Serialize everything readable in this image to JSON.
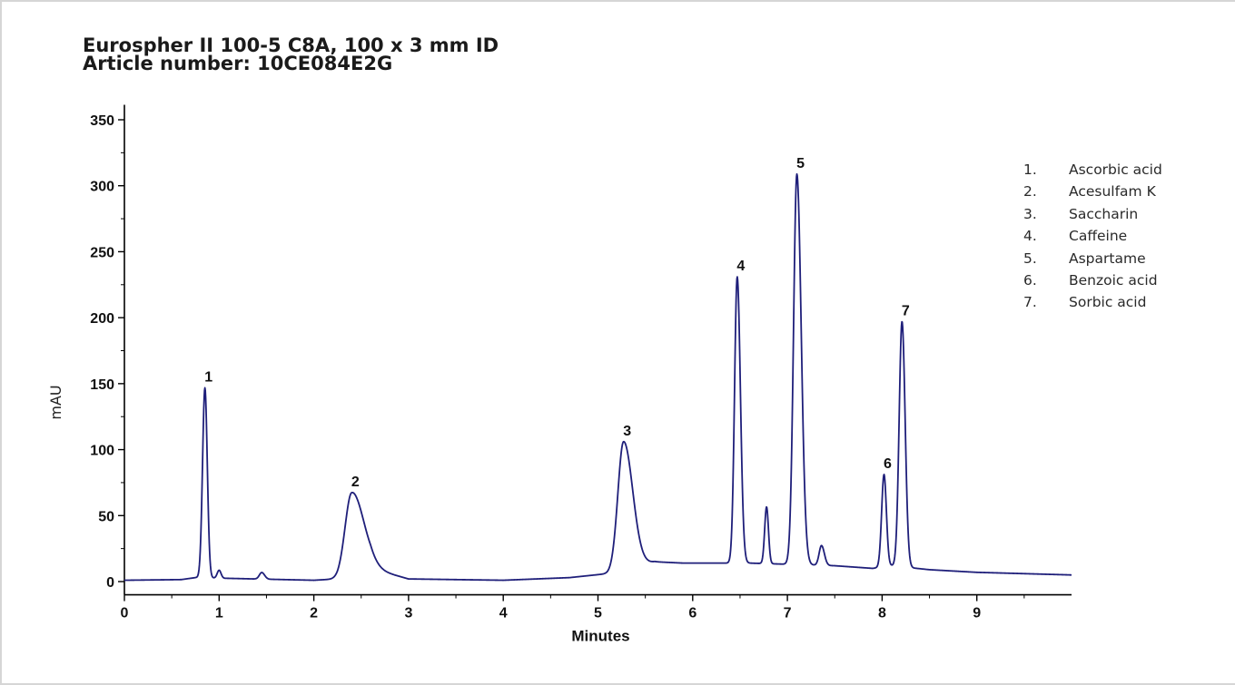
{
  "title": {
    "line1": "Eurospher II 100-5 C8A, 100 x 3 mm ID",
    "line2": "Article number: 10CE084E2G"
  },
  "legend": [
    {
      "num": "1.",
      "name": "Ascorbic acid"
    },
    {
      "num": "2.",
      "name": "Acesulfam K"
    },
    {
      "num": "3.",
      "name": "Saccharin"
    },
    {
      "num": "4.",
      "name": "Caffeine"
    },
    {
      "num": "5.",
      "name": "Aspartame"
    },
    {
      "num": "6.",
      "name": "Benzoic acid"
    },
    {
      "num": "7.",
      "name": "Sorbic acid"
    }
  ],
  "chart_data": {
    "type": "line",
    "xlabel": "Minutes",
    "ylabel": "mAU",
    "xlim": [
      0,
      10
    ],
    "ylim": [
      -10,
      360
    ],
    "xticks": [
      0,
      1,
      2,
      3,
      4,
      5,
      6,
      7,
      8,
      9
    ],
    "yticks": [
      0,
      50,
      100,
      150,
      200,
      250,
      300,
      350
    ],
    "line_color": "#1f1f7a",
    "grid": false,
    "baseline": [
      [
        0,
        1
      ],
      [
        0.6,
        1.5
      ],
      [
        0.75,
        3
      ],
      [
        2.0,
        1
      ],
      [
        2.25,
        2
      ],
      [
        2.6,
        10
      ],
      [
        3.0,
        2
      ],
      [
        4.0,
        1
      ],
      [
        4.7,
        3
      ],
      [
        5.1,
        6
      ],
      [
        5.6,
        15
      ],
      [
        5.9,
        14
      ],
      [
        6.35,
        14
      ],
      [
        6.6,
        14
      ],
      [
        7.5,
        12
      ],
      [
        7.9,
        10
      ],
      [
        8.1,
        12
      ],
      [
        8.5,
        9
      ],
      [
        9.0,
        7
      ],
      [
        10.0,
        5
      ]
    ],
    "peaks": [
      {
        "label": "1",
        "t": 0.85,
        "h": 144,
        "w": 0.025,
        "tail": 1.0
      },
      {
        "label": "2",
        "t": 2.4,
        "h": 62,
        "w": 0.07,
        "tail": 1.8
      },
      {
        "label": "3",
        "t": 5.27,
        "h": 97,
        "w": 0.06,
        "tail": 1.6
      },
      {
        "label": "4",
        "t": 6.47,
        "h": 217,
        "w": 0.028,
        "tail": 1.2
      },
      {
        "label": "5",
        "t": 7.1,
        "h": 296,
        "w": 0.035,
        "tail": 1.3
      },
      {
        "label": "6",
        "t": 8.02,
        "h": 70,
        "w": 0.025,
        "tail": 1.0
      },
      {
        "label": "7",
        "t": 8.21,
        "h": 186,
        "w": 0.03,
        "tail": 1.1
      },
      {
        "label": "",
        "t": 1.0,
        "h": 6,
        "w": 0.02,
        "tail": 1.0
      },
      {
        "label": "",
        "t": 1.45,
        "h": 5,
        "w": 0.025,
        "tail": 1.2
      },
      {
        "label": "",
        "t": 6.78,
        "h": 43,
        "w": 0.02,
        "tail": 1.0
      },
      {
        "label": "",
        "t": 7.36,
        "h": 15,
        "w": 0.025,
        "tail": 1.2
      }
    ]
  }
}
